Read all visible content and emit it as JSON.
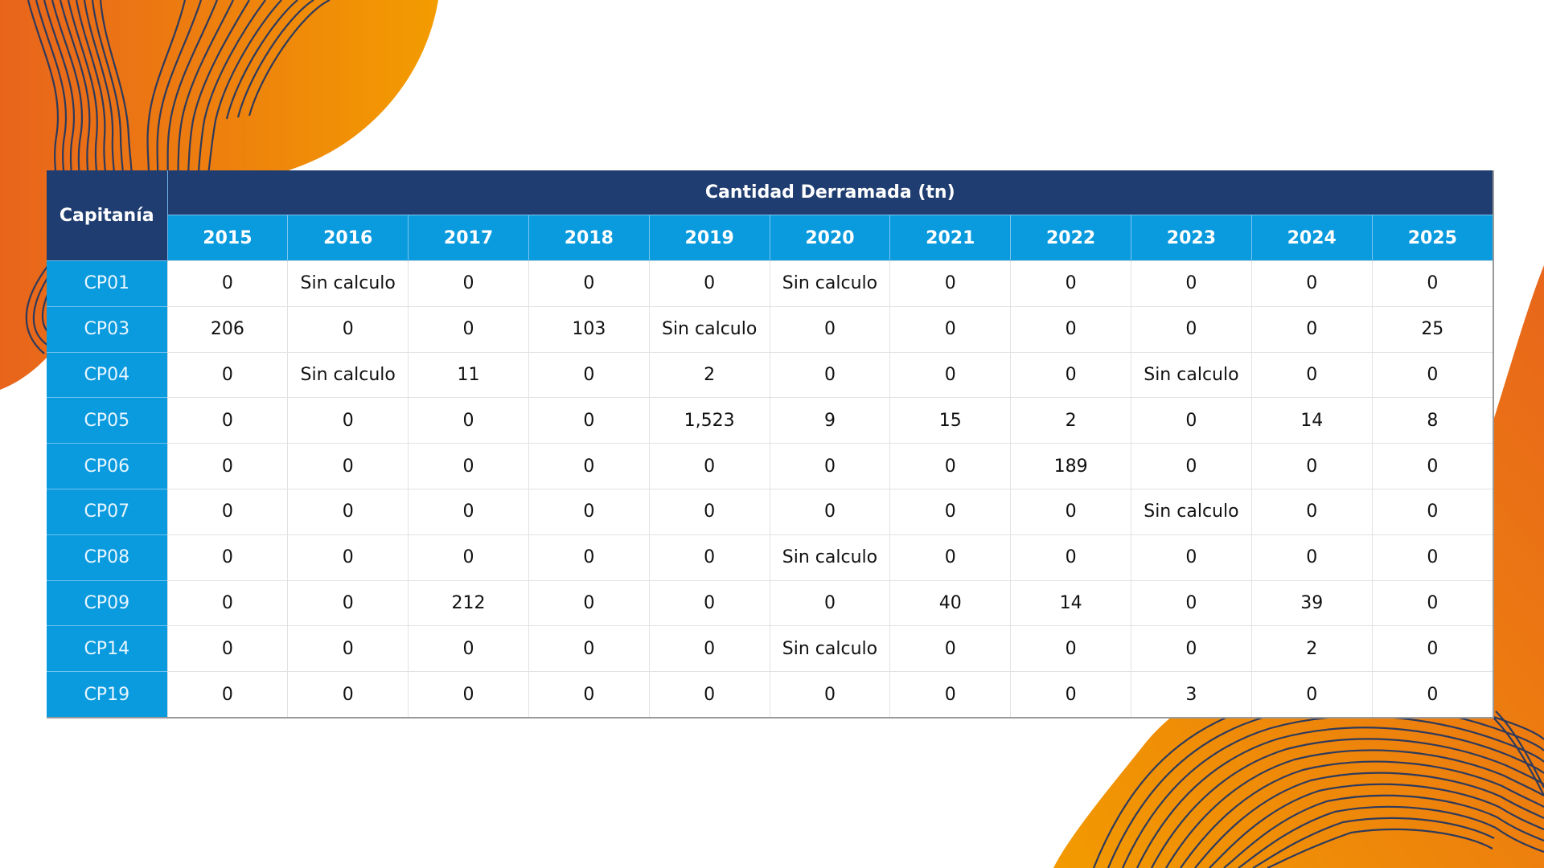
{
  "table": {
    "row_header_label": "Capitanía",
    "group_header_label": "Cantidad Derramada (tn)",
    "years": [
      "2015",
      "2016",
      "2017",
      "2018",
      "2019",
      "2020",
      "2021",
      "2022",
      "2023",
      "2024",
      "2025"
    ],
    "rows": [
      {
        "capitania": "CP01",
        "values": [
          "0",
          "Sin calculo",
          "0",
          "0",
          "0",
          "Sin calculo",
          "0",
          "0",
          "0",
          "0",
          "0"
        ]
      },
      {
        "capitania": "CP03",
        "values": [
          "206",
          "0",
          "0",
          "103",
          "Sin calculo",
          "0",
          "0",
          "0",
          "0",
          "0",
          "25"
        ]
      },
      {
        "capitania": "CP04",
        "values": [
          "0",
          "Sin calculo",
          "11",
          "0",
          "2",
          "0",
          "0",
          "0",
          "Sin calculo",
          "0",
          "0"
        ]
      },
      {
        "capitania": "CP05",
        "values": [
          "0",
          "0",
          "0",
          "0",
          "1,523",
          "9",
          "15",
          "2",
          "0",
          "14",
          "8"
        ]
      },
      {
        "capitania": "CP06",
        "values": [
          "0",
          "0",
          "0",
          "0",
          "0",
          "0",
          "0",
          "189",
          "0",
          "0",
          "0"
        ]
      },
      {
        "capitania": "CP07",
        "values": [
          "0",
          "0",
          "0",
          "0",
          "0",
          "0",
          "0",
          "0",
          "Sin calculo",
          "0",
          "0"
        ]
      },
      {
        "capitania": "CP08",
        "values": [
          "0",
          "0",
          "0",
          "0",
          "0",
          "Sin calculo",
          "0",
          "0",
          "0",
          "0",
          "0"
        ]
      },
      {
        "capitania": "CP09",
        "values": [
          "0",
          "0",
          "212",
          "0",
          "0",
          "0",
          "40",
          "14",
          "0",
          "39",
          "0"
        ]
      },
      {
        "capitania": "CP14",
        "values": [
          "0",
          "0",
          "0",
          "0",
          "0",
          "Sin calculo",
          "0",
          "0",
          "0",
          "2",
          "0"
        ]
      },
      {
        "capitania": "CP19",
        "values": [
          "0",
          "0",
          "0",
          "0",
          "0",
          "0",
          "0",
          "0",
          "3",
          "0",
          "0"
        ]
      }
    ]
  },
  "colors": {
    "header_navy": "#1f3d70",
    "header_blue": "#0a9ade",
    "accent_orange_dark": "#e8661b",
    "accent_orange_light": "#f29a00",
    "line_navy": "#2e3a5c"
  }
}
